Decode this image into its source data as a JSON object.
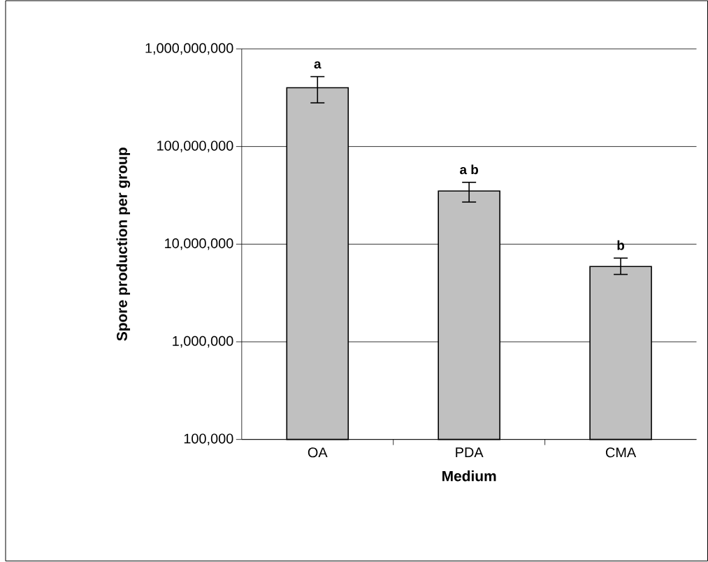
{
  "chart_data": {
    "type": "bar",
    "xlabel": "Medium",
    "ylabel": "Spore production per group",
    "categories": [
      "OA",
      "PDA",
      "CMA"
    ],
    "values": [
      400000000,
      35000000,
      5900000
    ],
    "errors": [
      [
        280000000,
        520000000
      ],
      [
        27000000,
        43000000
      ],
      [
        4900000,
        7200000
      ]
    ],
    "color": "#c0c0c0",
    "log": "y",
    "ylim": [
      100000,
      1000000000
    ],
    "yticks": [
      {
        "value": 100000,
        "label": "100,000"
      },
      {
        "value": 1000000,
        "label": "1,000,000"
      },
      {
        "value": 10000000,
        "label": "10,000,000"
      },
      {
        "value": 100000000,
        "label": "100,000,000"
      },
      {
        "value": 1000000000,
        "label": "1,000,000,000"
      }
    ],
    "grid": "y",
    "annotations": [
      {
        "text": "a",
        "x": "OA",
        "y": 520000000
      },
      {
        "text": "a b",
        "x": "PDA",
        "y": 43000000
      },
      {
        "text": "b",
        "x": "CMA",
        "y": 7200000
      }
    ]
  }
}
